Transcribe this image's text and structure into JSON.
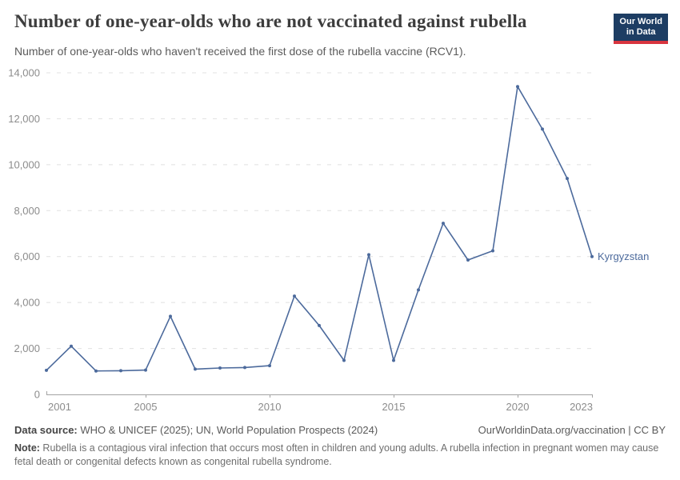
{
  "header": {
    "title": "Number of one-year-olds who are not vaccinated against rubella",
    "subtitle": "Number of one-year-olds who haven't received the first dose of the rubella vaccine (RCV1).",
    "logo": {
      "line1": "Our World",
      "line2": "in Data",
      "bg_color": "#1d3d63",
      "accent_color": "#d8353f"
    }
  },
  "chart_data": {
    "type": "line",
    "title": "Number of one-year-olds who are not vaccinated against rubella",
    "x": [
      2001,
      2002,
      2003,
      2004,
      2005,
      2006,
      2007,
      2008,
      2009,
      2010,
      2011,
      2012,
      2013,
      2014,
      2015,
      2016,
      2017,
      2018,
      2019,
      2020,
      2021,
      2022,
      2023
    ],
    "series": [
      {
        "name": "Kyrgyzstan",
        "color": "#4C6A9C",
        "values": [
          1050,
          2100,
          1020,
          1030,
          1060,
          3400,
          1100,
          1150,
          1170,
          1250,
          4280,
          3000,
          1480,
          6080,
          1480,
          4550,
          7450,
          5850,
          6250,
          13400,
          11550,
          9400,
          6000
        ]
      }
    ],
    "end_label": "Kyrgyzstan",
    "xlim": [
      2001,
      2023
    ],
    "ylim": [
      0,
      14000
    ],
    "x_tick_years": [
      2001,
      2005,
      2010,
      2015,
      2020,
      2023
    ],
    "y_ticks": [
      {
        "value": 0,
        "label": "0"
      },
      {
        "value": 2000,
        "label": "2,000"
      },
      {
        "value": 4000,
        "label": "4,000"
      },
      {
        "value": 6000,
        "label": "6,000"
      },
      {
        "value": 8000,
        "label": "8,000"
      },
      {
        "value": 10000,
        "label": "10,000"
      },
      {
        "value": 12000,
        "label": "12,000"
      },
      {
        "value": 14000,
        "label": "14,000"
      }
    ],
    "grid": "horizontal-dashed",
    "legend_position": "end-of-line",
    "colors": {
      "grid": "#e0e0e0",
      "axis": "#a3a3a3",
      "tick_label": "#8c8c8c"
    }
  },
  "footer": {
    "data_source_label": "Data source:",
    "data_source_text": " WHO & UNICEF (2025); UN, World Population Prospects (2024)",
    "link_text": "OurWorldinData.org/vaccination | CC BY",
    "note_label": "Note:",
    "note_text": " Rubella is a contagious viral infection that occurs most often in children and young adults. A rubella infection in pregnant women may cause fetal death or congenital defects known as congenital rubella syndrome."
  }
}
